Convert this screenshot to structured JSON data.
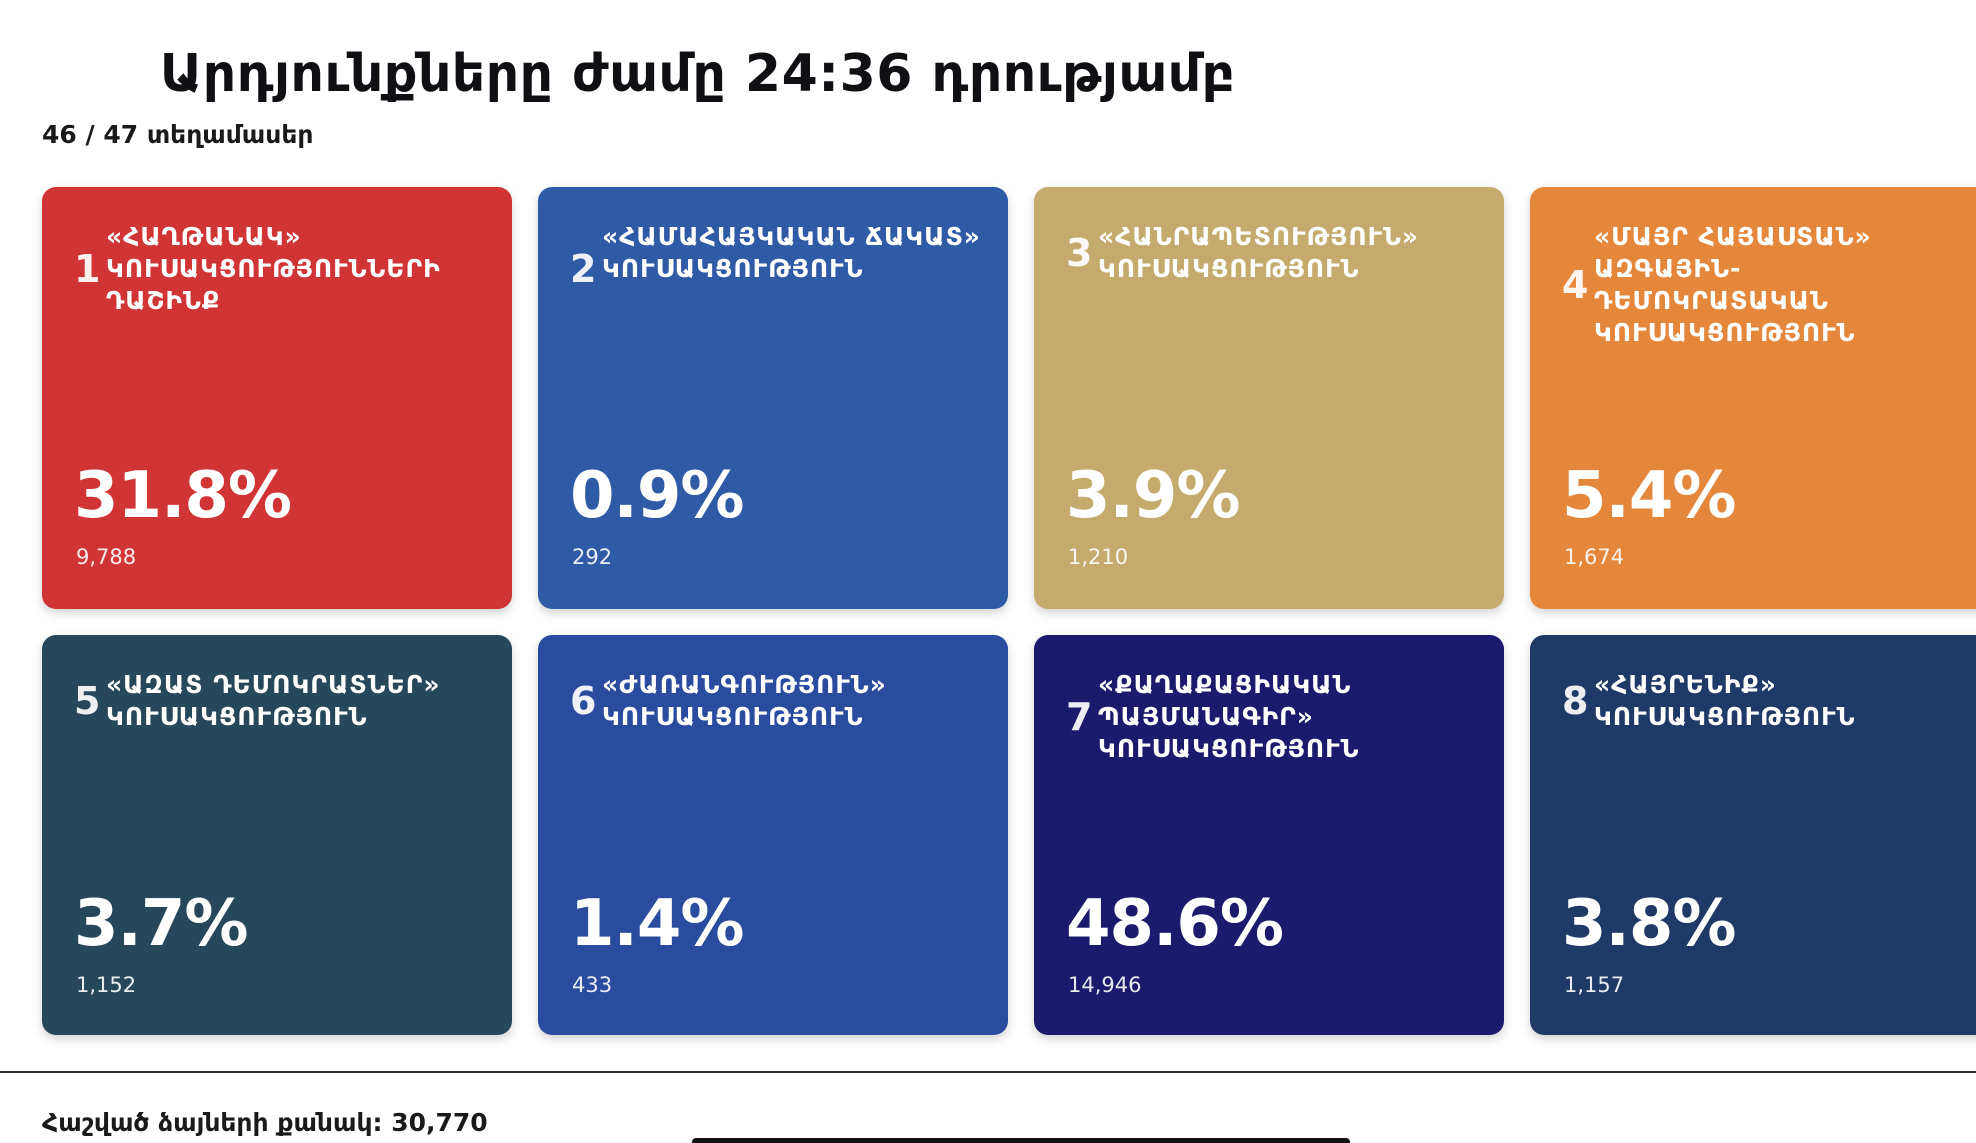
{
  "header": {
    "title": "Արդյունքները ժամը 24:36 դրությամբ",
    "precincts": "46 / 47 տեղամասեր"
  },
  "parties": [
    {
      "number": "1",
      "name": "«ՀԱՂԹԱՆԱԿ» ԿՈՒՍԱԿՑՈՒԹՅՈՒՆՆԵՐԻ ԴԱՇԻՆՔ",
      "percent": "31.8%",
      "votes": "9,788",
      "color": "#d13434"
    },
    {
      "number": "2",
      "name": "«ՀԱՄԱՀԱՅԿԱԿԱՆ ՃԱԿԱՏ» ԿՈՒՍԱԿՑՈՒԹՅՈՒՆ",
      "percent": "0.9%",
      "votes": "292",
      "color": "#2f5aa6"
    },
    {
      "number": "3",
      "name": "«ՀԱՆՐԱՊԵՏՈՒԹՅՈՒՆ» ԿՈՒՍԱԿՑՈՒԹՅՈՒՆ",
      "percent": "3.9%",
      "votes": "1,210",
      "color": "#c4aa6c"
    },
    {
      "number": "4",
      "name": "«ՄԱՅՐ ՀԱՅԱՍՏԱՆ» ԱԶԳԱՅԻՆ-ԴԵՄՈԿՐԱՏԱԿԱՆ ԿՈՒՍԱԿՑՈՒԹՅՈՒՆ",
      "percent": "5.4%",
      "votes": "1,674",
      "color": "#e5873b"
    },
    {
      "number": "5",
      "name": "«ԱԶԱՏ ԴԵՄՈԿՐԱՏՆԵՐ» ԿՈՒՍԱԿՑՈՒԹՅՈՒՆ",
      "percent": "3.7%",
      "votes": "1,152",
      "color": "#27475a"
    },
    {
      "number": "6",
      "name": "«ԺԱՌԱՆԳՈՒԹՅՈՒՆ» ԿՈՒՍԱԿՑՈՒԹՅՈՒՆ",
      "percent": "1.4%",
      "votes": "433",
      "color": "#2a4c9e"
    },
    {
      "number": "7",
      "name": "«ՔԱՂԱՔԱՑԻԱԿԱՆ ՊԱՅՄԱՆԱԳԻՐ» ԿՈՒՍԱԿՑՈՒԹՅՈՒՆ",
      "percent": "48.6%",
      "votes": "14,946",
      "color": "#1c1a6c"
    },
    {
      "number": "8",
      "name": "«ՀԱՅՐԵՆԻՔ» ԿՈՒՍԱԿՑՈՒԹՅՈՒՆ",
      "percent": "3.8%",
      "votes": "1,157",
      "color": "#203a68"
    }
  ],
  "footer": {
    "total": "Հաշված ձայների քանակ: 30,770"
  }
}
